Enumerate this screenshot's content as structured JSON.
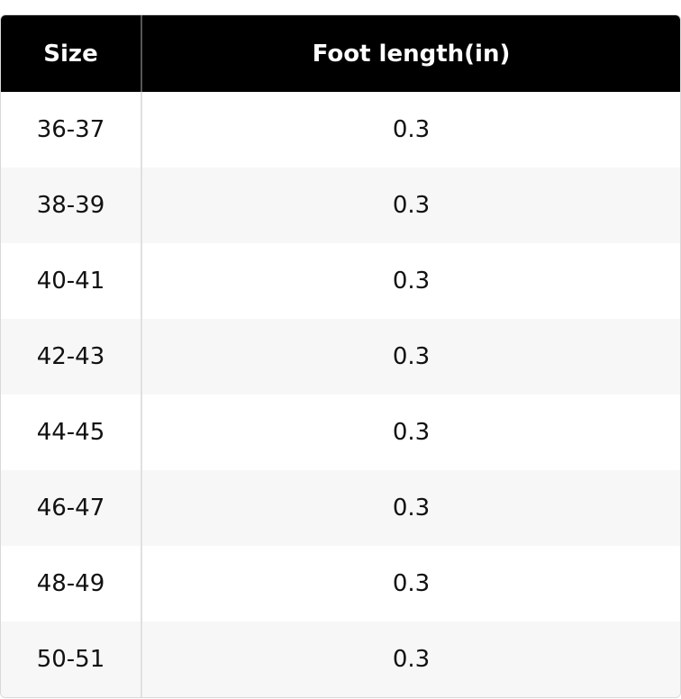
{
  "table": {
    "header": [
      "Size",
      "Foot length(in)"
    ],
    "rows": [
      [
        "36-37",
        "0.3"
      ],
      [
        "38-39",
        "0.3"
      ],
      [
        "40-41",
        "0.3"
      ],
      [
        "42-43",
        "0.3"
      ],
      [
        "44-45",
        "0.3"
      ],
      [
        "46-47",
        "0.3"
      ],
      [
        "48-49",
        "0.3"
      ],
      [
        "50-51",
        "0.3"
      ]
    ]
  }
}
